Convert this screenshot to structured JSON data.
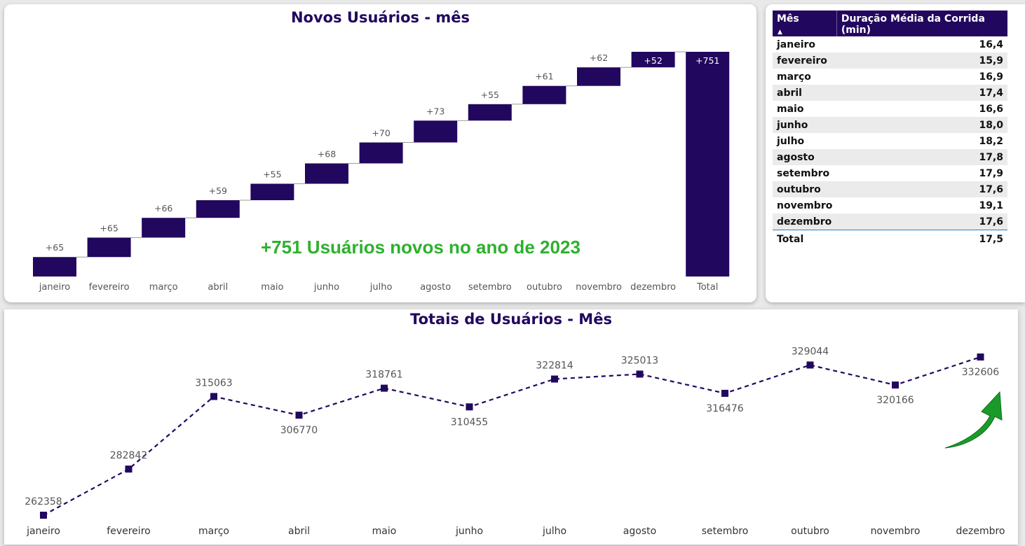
{
  "waterfall": {
    "title": "Novos Usuários - mês",
    "annotation": "+751 Usuários novos no ano de 2023",
    "bar_color": "#22075e",
    "annotation_color": "#2db12d"
  },
  "line_chart": {
    "title": "Totais de Usuários - Mês",
    "line_color": "#22075e",
    "arrow_color": "#1a9a2a",
    "arrow_icon": "green-up-arrow-icon"
  },
  "table": {
    "headers": [
      "Mês",
      "Duração Média da Corrida (min)"
    ],
    "rows": [
      [
        "janeiro",
        "16,4"
      ],
      [
        "fevereiro",
        "15,9"
      ],
      [
        "março",
        "16,9"
      ],
      [
        "abril",
        "17,4"
      ],
      [
        "maio",
        "16,6"
      ],
      [
        "junho",
        "18,0"
      ],
      [
        "julho",
        "18,2"
      ],
      [
        "agosto",
        "17,8"
      ],
      [
        "setembro",
        "17,9"
      ],
      [
        "outubro",
        "17,6"
      ],
      [
        "novembro",
        "19,1"
      ],
      [
        "dezembro",
        "17,6"
      ]
    ],
    "total": [
      "Total",
      "17,5"
    ],
    "header_color": "#22075e"
  },
  "chart_data": [
    {
      "type": "bar",
      "subtype": "waterfall",
      "title": "Novos Usuários - mês",
      "categories": [
        "janeiro",
        "fevereiro",
        "março",
        "abril",
        "maio",
        "junho",
        "julho",
        "agosto",
        "setembro",
        "outubro",
        "novembro",
        "dezembro",
        "Total"
      ],
      "values": [
        65,
        65,
        66,
        59,
        55,
        68,
        70,
        73,
        55,
        61,
        62,
        52,
        751
      ],
      "labels": [
        "+65",
        "+65",
        "+66",
        "+59",
        "+55",
        "+68",
        "+70",
        "+73",
        "+55",
        "+61",
        "+62",
        "+52",
        "+751"
      ],
      "ylim": [
        0,
        751
      ],
      "grid": false
    },
    {
      "type": "line",
      "title": "Totais de Usuários - Mês",
      "categories": [
        "janeiro",
        "fevereiro",
        "março",
        "abril",
        "maio",
        "junho",
        "julho",
        "agosto",
        "setembro",
        "outubro",
        "novembro",
        "dezembro"
      ],
      "values": [
        262358,
        282842,
        315063,
        306770,
        318761,
        310455,
        322814,
        325013,
        316476,
        329044,
        320166,
        332606
      ],
      "line_style": "dashed",
      "marker": "square",
      "grid": false
    }
  ]
}
